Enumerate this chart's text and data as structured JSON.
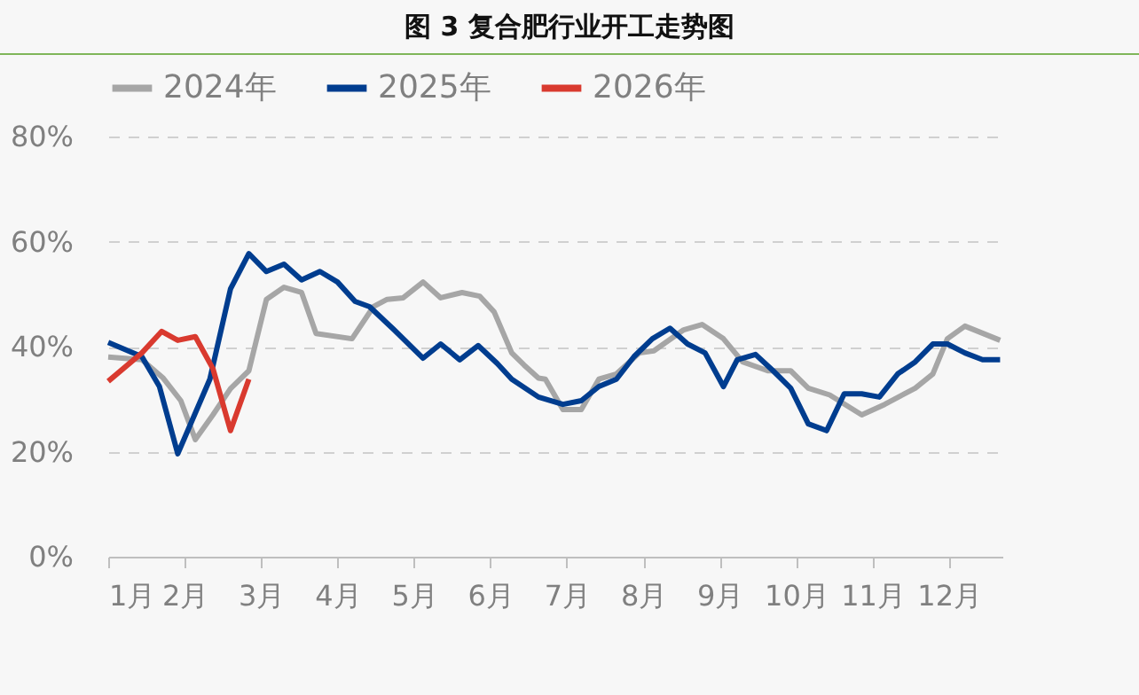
{
  "chart_data": {
    "type": "line",
    "title": "图 3 复合肥行业开工走势图",
    "xlim": [
      1,
      12.7
    ],
    "xticks": [
      {
        "value": 1,
        "label": "1月"
      },
      {
        "value": 2,
        "label": "2月"
      },
      {
        "value": 3,
        "label": "3月"
      },
      {
        "value": 4,
        "label": "4月"
      },
      {
        "value": 5,
        "label": "5月"
      },
      {
        "value": 6,
        "label": "6月"
      },
      {
        "value": 7,
        "label": "7月"
      },
      {
        "value": 8,
        "label": "8月"
      },
      {
        "value": 9,
        "label": "9月"
      },
      {
        "value": 10,
        "label": "10月"
      },
      {
        "value": 11,
        "label": "11月"
      },
      {
        "value": 12,
        "label": "12月"
      }
    ],
    "ylim": [
      0,
      80
    ],
    "yticks": [
      {
        "value": 0,
        "label": "0%"
      },
      {
        "value": 20,
        "label": "20%"
      },
      {
        "value": 40,
        "label": "40%"
      },
      {
        "value": 60,
        "label": "60%"
      },
      {
        "value": 80,
        "label": "80%"
      }
    ],
    "grid": "y",
    "legend": "top",
    "marker": "none",
    "line_style": "solid",
    "series": [
      {
        "name": "2024年",
        "color": "#a6a6a6",
        "x": [
          1,
          1.44,
          1.72,
          1.95,
          2.14,
          2.37,
          2.6,
          2.84,
          3.07,
          3.3,
          3.53,
          3.72,
          4.19,
          4.47,
          4.65,
          4.86,
          5.12,
          5.35,
          5.63,
          5.86,
          6.05,
          6.28,
          6.44,
          6.63,
          6.72,
          6.95,
          7.19,
          7.42,
          7.65,
          7.95,
          8.14,
          8.53,
          8.77,
          9.05,
          9.3,
          9.63,
          9.93,
          10.16,
          10.44,
          10.86,
          11.16,
          11.56,
          11.79,
          11.98,
          12.21,
          12.67
        ],
        "values": [
          38,
          37.5,
          34,
          29.7,
          22.3,
          27,
          32,
          35.4,
          49,
          51.3,
          50.3,
          42.5,
          41.5,
          47.6,
          49,
          49.3,
          52.3,
          49.3,
          50.3,
          49.6,
          46.6,
          38.8,
          36.5,
          34,
          33.8,
          28,
          28,
          33.8,
          34.8,
          38.8,
          39.2,
          43.2,
          44.2,
          41.5,
          37.1,
          35.4,
          35.4,
          32.1,
          30.8,
          27,
          29,
          32.1,
          34.8,
          41.5,
          43.9,
          41.2
        ]
      },
      {
        "name": "2025年",
        "color": "#003d8f",
        "x": [
          1,
          1.44,
          1.67,
          1.91,
          2.33,
          2.6,
          2.84,
          3.07,
          3.3,
          3.53,
          3.77,
          4,
          4.23,
          4.42,
          4.74,
          5.12,
          5.35,
          5.6,
          5.84,
          6.09,
          6.28,
          6.63,
          6.95,
          7.19,
          7.42,
          7.65,
          7.88,
          8.12,
          8.35,
          8.58,
          8.81,
          9.05,
          9.23,
          9.47,
          9.7,
          9.93,
          10.16,
          10.4,
          10.63,
          10.86,
          11.09,
          11.33,
          11.56,
          11.79,
          11.98,
          12.21,
          12.44,
          12.67
        ],
        "values": [
          40.8,
          38.1,
          32.4,
          19.6,
          33.8,
          51,
          57.7,
          54.3,
          55.7,
          52.7,
          54.3,
          52.3,
          48.6,
          47.6,
          43.2,
          37.8,
          40.5,
          37.5,
          40.2,
          36.8,
          33.8,
          30.4,
          29,
          29.7,
          32.4,
          33.8,
          38.1,
          41.5,
          43.5,
          40.5,
          38.8,
          32.4,
          37.5,
          38.5,
          35.4,
          32.1,
          25.3,
          24,
          31,
          31,
          30.4,
          34.8,
          37.1,
          40.5,
          40.5,
          38.8,
          37.5,
          37.5
        ]
      },
      {
        "name": "2026年",
        "color": "#d93a2f",
        "x": [
          1,
          1.44,
          1.7,
          1.91,
          2.14,
          2.37,
          2.6,
          2.84
        ],
        "values": [
          33.4,
          38.8,
          42.9,
          41.2,
          41.9,
          35.8,
          24,
          33.8
        ]
      }
    ]
  }
}
